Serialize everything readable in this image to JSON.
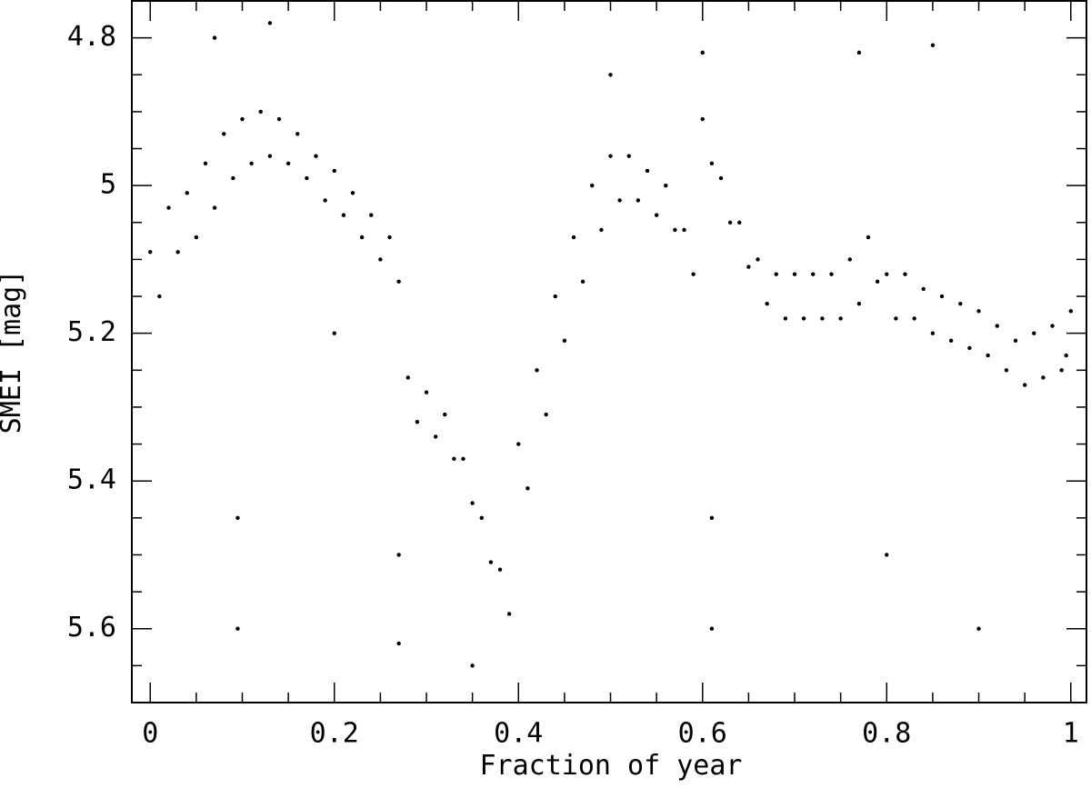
{
  "chart_data": {
    "type": "scatter",
    "xlabel": "Fraction of year",
    "ylabel": "SMEI [mag]",
    "color": "#000000",
    "x": [
      0,
      0.01,
      0.02,
      0.03,
      0.04,
      0.05,
      0.06,
      0.07,
      0.08,
      0.09,
      0.1,
      0.11,
      0.12,
      0.13,
      0.14,
      0.15,
      0.16,
      0.17,
      0.18,
      0.19,
      0.2,
      0.21,
      0.22,
      0.23,
      0.24,
      0.25,
      0.26,
      0.27,
      0.28,
      0.29,
      0.3,
      0.31,
      0.32,
      0.33,
      0.34,
      0.35,
      0.36,
      0.37,
      0.38,
      0.39,
      0.4,
      0.41,
      0.42,
      0.43,
      0.44,
      0.45,
      0.46,
      0.47,
      0.48,
      0.49,
      0.5,
      0.51,
      0.52,
      0.53,
      0.54,
      0.55,
      0.56,
      0.57,
      0.58,
      0.59,
      0.6,
      0.61,
      0.62,
      0.63,
      0.64,
      0.65,
      0.66,
      0.67,
      0.68,
      0.69,
      0.7,
      0.71,
      0.72,
      0.73,
      0.74,
      0.75,
      0.76,
      0.77,
      0.78,
      0.79,
      0.8,
      0.81,
      0.82,
      0.83,
      0.84,
      0.85,
      0.86,
      0.87,
      0.88,
      0.89,
      0.9,
      0.91,
      0.92,
      0.93,
      0.94,
      0.95,
      0.96,
      0.97,
      0.98,
      0.99,
      1.0,
      0.995,
      0.095,
      0.095,
      0.27,
      0.27,
      0.61,
      0.61,
      0.77,
      0.8,
      0.9,
      0.35,
      0.13,
      0.07,
      0.6,
      0.85,
      0.2,
      0.5
    ],
    "values": [
      5.09,
      5.15,
      5.03,
      5.09,
      5.01,
      5.07,
      4.97,
      5.03,
      4.93,
      4.99,
      4.91,
      4.97,
      4.9,
      4.96,
      4.91,
      4.97,
      4.93,
      4.99,
      4.96,
      5.02,
      4.98,
      5.04,
      5.01,
      5.07,
      5.04,
      5.1,
      5.07,
      5.13,
      5.26,
      5.32,
      5.28,
      5.34,
      5.31,
      5.37,
      5.37,
      5.43,
      5.45,
      5.51,
      5.52,
      5.58,
      5.35,
      5.41,
      5.25,
      5.31,
      5.15,
      5.21,
      5.07,
      5.13,
      5.0,
      5.06,
      4.96,
      5.02,
      4.96,
      5.02,
      4.98,
      5.04,
      5.0,
      5.06,
      5.06,
      5.12,
      4.91,
      4.97,
      4.99,
      5.05,
      5.05,
      5.11,
      5.1,
      5.16,
      5.12,
      5.18,
      5.12,
      5.18,
      5.12,
      5.18,
      5.12,
      5.18,
      5.1,
      5.16,
      5.07,
      5.13,
      5.12,
      5.18,
      5.12,
      5.18,
      5.14,
      5.2,
      5.15,
      5.21,
      5.16,
      5.22,
      5.17,
      5.23,
      5.19,
      5.25,
      5.21,
      5.27,
      5.2,
      5.26,
      5.19,
      5.25,
      5.17,
      5.23,
      5.6,
      5.45,
      5.62,
      5.5,
      5.6,
      5.45,
      4.82,
      5.5,
      5.6,
      5.65,
      4.78,
      4.8,
      4.82,
      4.81,
      5.2,
      4.85
    ],
    "xlim": [
      -0.02,
      1.017
    ],
    "ylim": [
      4.75,
      5.7
    ],
    "y_inverted": true,
    "xticks": [
      0,
      0.2,
      0.4,
      0.6,
      0.8,
      1
    ],
    "yticks": [
      4.8,
      5,
      5.2,
      5.4,
      5.6
    ],
    "xminorticks": [
      0.05,
      0.1,
      0.15,
      0.25,
      0.3,
      0.35,
      0.45,
      0.5,
      0.55,
      0.65,
      0.7,
      0.75,
      0.85,
      0.9,
      0.95
    ],
    "yminorticks": [
      4.75,
      4.85,
      4.9,
      4.95,
      5.05,
      5.1,
      5.15,
      5.25,
      5.3,
      5.35,
      5.45,
      5.5,
      5.55,
      5.65,
      5.7
    ]
  }
}
